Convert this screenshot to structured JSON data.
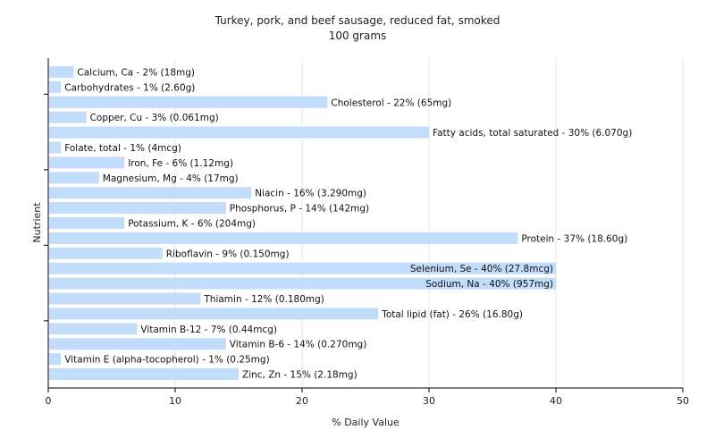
{
  "chart_data": {
    "type": "bar",
    "orientation": "horizontal",
    "title": "Turkey, pork, and beef sausage, reduced fat, smoked",
    "subtitle": "100 grams",
    "xlabel": "% Daily Value",
    "ylabel": "Nutrient",
    "xlim": [
      0,
      50
    ],
    "xticks": [
      0,
      10,
      20,
      30,
      40,
      50
    ],
    "grid": true,
    "bar_color": "#c2dcfc",
    "categories": [
      "Calcium, Ca - 2% (18mg)",
      "Carbohydrates - 1% (2.60g)",
      "Cholesterol - 22% (65mg)",
      "Copper, Cu - 3% (0.061mg)",
      "Fatty acids, total saturated - 30% (6.070g)",
      "Folate, total - 1% (4mcg)",
      "Iron, Fe - 6% (1.12mg)",
      "Magnesium, Mg - 4% (17mg)",
      "Niacin - 16% (3.290mg)",
      "Phosphorus, P - 14% (142mg)",
      "Potassium, K - 6% (204mg)",
      "Protein - 37% (18.60g)",
      "Riboflavin - 9% (0.150mg)",
      "Selenium, Se - 40% (27.8mcg)",
      "Sodium, Na - 40% (957mg)",
      "Thiamin - 12% (0.180mg)",
      "Total lipid (fat) - 26% (16.80g)",
      "Vitamin B-12 - 7% (0.44mcg)",
      "Vitamin B-6 - 14% (0.270mg)",
      "Vitamin E (alpha-tocopherol) - 1% (0.25mg)",
      "Zinc, Zn - 15% (2.18mg)"
    ],
    "values": [
      2,
      1,
      22,
      3,
      30,
      1,
      6,
      4,
      16,
      14,
      6,
      37,
      9,
      40,
      40,
      12,
      26,
      7,
      14,
      1,
      15
    ]
  }
}
